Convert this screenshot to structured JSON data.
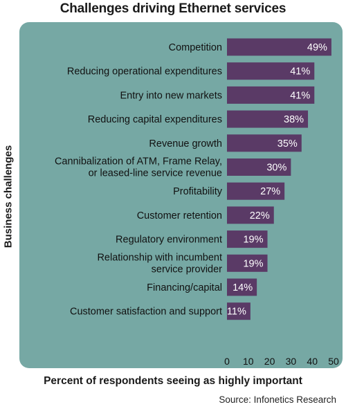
{
  "chart_data": {
    "type": "bar",
    "orientation": "horizontal",
    "title": "Challenges driving Ethernet services",
    "ylabel": "Business challenges",
    "xlabel": "Percent of respondents seeing as highly important",
    "source": "Source: Infonetics Research",
    "categories": [
      "Competition",
      "Reducing operational expenditures",
      "Entry into new markets",
      "Reducing capital expenditures",
      "Revenue growth",
      "Cannibalization of ATM, Frame Relay,|or leased-line service revenue",
      "Profitability",
      "Customer retention",
      "Regulatory environment",
      "Relationship with incumbent|service provider",
      "Financing/capital",
      "Customer satisfaction and support"
    ],
    "values": [
      49,
      41,
      41,
      38,
      35,
      30,
      27,
      22,
      19,
      19,
      14,
      11
    ],
    "value_labels": [
      "49%",
      "41%",
      "41%",
      "38%",
      "35%",
      "30%",
      "27%",
      "22%",
      "19%",
      "19%",
      "14%",
      "11%"
    ],
    "xticks": [
      0,
      10,
      20,
      30,
      40,
      50
    ],
    "xlim": [
      0,
      50
    ],
    "colors": {
      "panel": "#76a8a4",
      "bar": "#5a3a66",
      "value_text": "#ffffff"
    }
  }
}
